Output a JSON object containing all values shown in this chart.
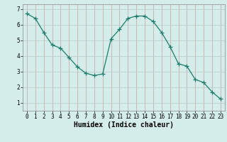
{
  "x": [
    0,
    1,
    2,
    3,
    4,
    5,
    6,
    7,
    8,
    9,
    10,
    11,
    12,
    13,
    14,
    15,
    16,
    17,
    18,
    19,
    20,
    21,
    22,
    23
  ],
  "y": [
    6.7,
    6.4,
    5.5,
    4.7,
    4.5,
    3.9,
    3.3,
    2.9,
    2.75,
    2.85,
    5.1,
    5.7,
    6.4,
    6.55,
    6.55,
    6.2,
    5.5,
    4.6,
    3.5,
    3.35,
    2.5,
    2.3,
    1.7,
    1.25
  ],
  "line_color": "#1e7b6a",
  "marker": "+",
  "marker_size": 4,
  "bg_color": "#d4edeb",
  "vgrid_color": "#c8a0a0",
  "hgrid_color": "#b8c8c4",
  "xlabel": "Humidex (Indice chaleur)",
  "ylim": [
    0.5,
    7.3
  ],
  "xlim": [
    -0.5,
    23.5
  ],
  "yticks": [
    1,
    2,
    3,
    4,
    5,
    6,
    7
  ],
  "xticks": [
    0,
    1,
    2,
    3,
    4,
    5,
    6,
    7,
    8,
    9,
    10,
    11,
    12,
    13,
    14,
    15,
    16,
    17,
    18,
    19,
    20,
    21,
    22,
    23
  ],
  "xlabel_fontsize": 7,
  "tick_fontsize": 5.5
}
